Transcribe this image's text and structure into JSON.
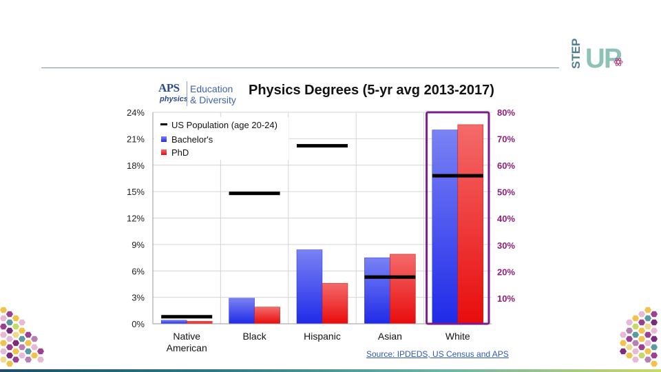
{
  "brand": {
    "logo_text_1": "STEP",
    "logo_text_2": "UP"
  },
  "aps": {
    "wordmark": "APS",
    "sub": "physics",
    "tag_line1": "Education",
    "tag_line2": "& Diversity"
  },
  "source_label": "Source: IPDEDS, US Census and APS",
  "colors": {
    "bachelors": "#3a47f0",
    "phd": "#f01e1e",
    "population": "#000000",
    "white_box": "#7a1c8c",
    "right_axis": "#8e1f7a"
  },
  "chart_data": {
    "type": "bar",
    "title": "Physics Degrees (5-yr avg 2013-2017)",
    "categories": [
      "Native\nAmerican",
      "Black",
      "Hispanic",
      "Asian",
      "White"
    ],
    "series": [
      {
        "name": "Bachelor's",
        "values": [
          0.4,
          2.9,
          8.4,
          7.5,
          22.0
        ]
      },
      {
        "name": "PhD",
        "values": [
          0.3,
          1.9,
          4.6,
          7.9,
          22.6
        ]
      }
    ],
    "population": {
      "name": "US Population  (age 20-24)",
      "values": [
        0.8,
        14.8,
        20.2,
        5.3,
        16.8
      ]
    },
    "ylim": [
      0,
      24
    ],
    "y_ticks": [
      "0%",
      "3%",
      "6%",
      "9%",
      "12%",
      "15%",
      "18%",
      "21%",
      "24%"
    ],
    "y2_ticks": [
      "10%",
      "20%",
      "30%",
      "40%",
      "50%",
      "60%",
      "70%",
      "80%"
    ],
    "y2_note": "Right axis applies to the White category (boxed)",
    "grid": true,
    "legend_position": "top-left"
  }
}
